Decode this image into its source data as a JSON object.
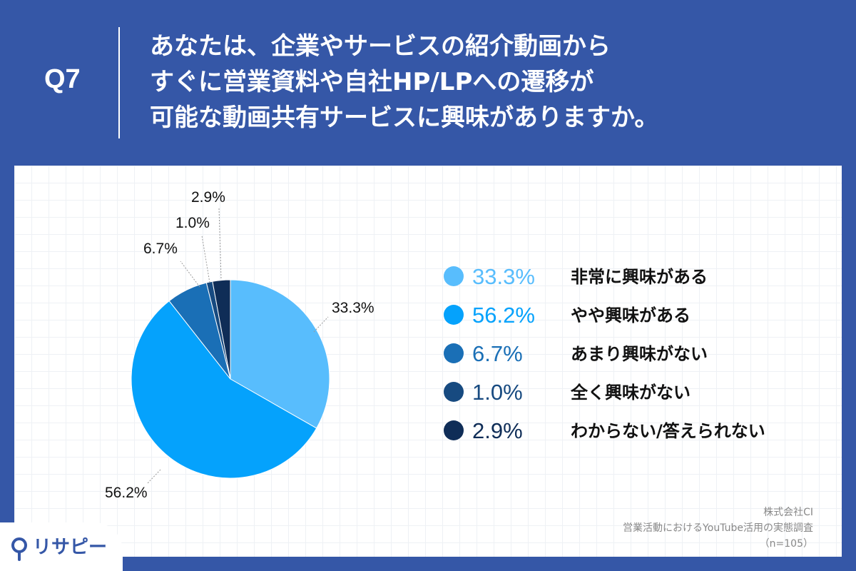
{
  "header": {
    "q_label": "Q7",
    "question_lines": [
      "あなたは、企業やサービスの紹介動画から",
      "すぐに営業資料や自社HP/LPへの遷移が",
      "可能な動画共有サービスに興味がありますか。"
    ]
  },
  "chart_data": {
    "type": "pie",
    "slices": [
      {
        "value": 33.3,
        "label": "33.3%",
        "legend": "非常に興味がある",
        "color": "#58bdfd"
      },
      {
        "value": 56.2,
        "label": "56.2%",
        "legend": "やや興味がある",
        "color": "#05a2fc"
      },
      {
        "value": 6.7,
        "label": "6.7%",
        "legend": "あまり興味がない",
        "color": "#1a6fb6"
      },
      {
        "value": 1.0,
        "label": "1.0%",
        "legend": "全く興味がない",
        "color": "#174a80"
      },
      {
        "value": 2.9,
        "label": "2.9%",
        "legend": "わからない/答えられない",
        "color": "#0f2d57"
      }
    ],
    "legend_placement": "right"
  },
  "source": {
    "company": "株式会社CI",
    "survey": "営業活動におけるYouTube活用の実態調査",
    "sample": "（n=105）"
  },
  "logo": {
    "text": "リサピー"
  }
}
